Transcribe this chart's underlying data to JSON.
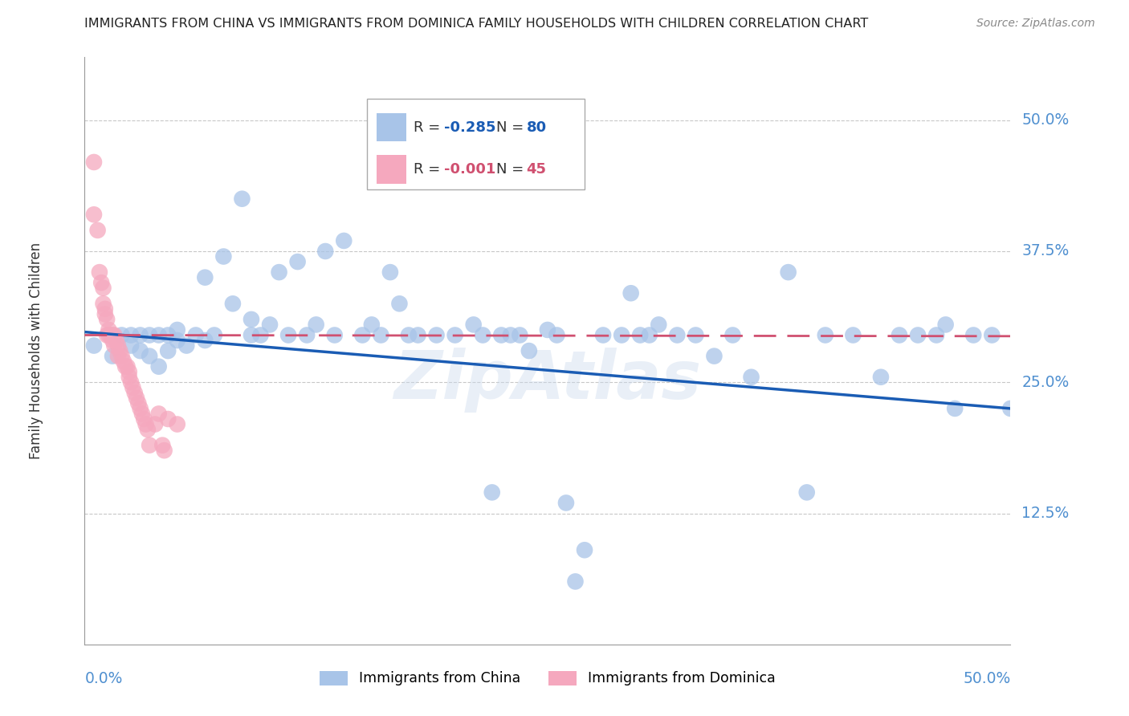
{
  "title": "IMMIGRANTS FROM CHINA VS IMMIGRANTS FROM DOMINICA FAMILY HOUSEHOLDS WITH CHILDREN CORRELATION CHART",
  "source": "Source: ZipAtlas.com",
  "ylabel": "Family Households with Children",
  "ytick_values": [
    0.5,
    0.375,
    0.25,
    0.125
  ],
  "ytick_labels": [
    "50.0%",
    "37.5%",
    "25.0%",
    "12.5%"
  ],
  "xlim": [
    0.0,
    0.5
  ],
  "ylim": [
    0.0,
    0.56
  ],
  "legend_china_R": "-0.285",
  "legend_china_N": "80",
  "legend_dominica_R": "-0.001",
  "legend_dominica_N": "45",
  "china_color": "#a8c4e8",
  "dominica_color": "#f5a8be",
  "china_line_color": "#1a5cb4",
  "dominica_line_color": "#d05070",
  "background_color": "#ffffff",
  "grid_color": "#c8c8c8",
  "watermark": "ZipAtlas",
  "title_color": "#222222",
  "axis_label_color": "#5090d0",
  "source_color": "#888888",
  "china_scatter_x": [
    0.005,
    0.015,
    0.02,
    0.025,
    0.025,
    0.03,
    0.03,
    0.035,
    0.035,
    0.04,
    0.04,
    0.045,
    0.045,
    0.05,
    0.05,
    0.055,
    0.06,
    0.065,
    0.065,
    0.07,
    0.075,
    0.08,
    0.085,
    0.09,
    0.09,
    0.095,
    0.1,
    0.105,
    0.11,
    0.115,
    0.12,
    0.125,
    0.13,
    0.135,
    0.14,
    0.15,
    0.155,
    0.16,
    0.165,
    0.17,
    0.175,
    0.18,
    0.19,
    0.2,
    0.21,
    0.215,
    0.22,
    0.225,
    0.23,
    0.235,
    0.24,
    0.25,
    0.255,
    0.26,
    0.265,
    0.27,
    0.28,
    0.29,
    0.295,
    0.3,
    0.305,
    0.31,
    0.32,
    0.33,
    0.34,
    0.35,
    0.36,
    0.38,
    0.39,
    0.4,
    0.415,
    0.43,
    0.44,
    0.45,
    0.46,
    0.465,
    0.47,
    0.48,
    0.49,
    0.5
  ],
  "china_scatter_y": [
    0.285,
    0.275,
    0.295,
    0.285,
    0.295,
    0.28,
    0.295,
    0.275,
    0.295,
    0.265,
    0.295,
    0.28,
    0.295,
    0.29,
    0.3,
    0.285,
    0.295,
    0.35,
    0.29,
    0.295,
    0.37,
    0.325,
    0.425,
    0.295,
    0.31,
    0.295,
    0.305,
    0.355,
    0.295,
    0.365,
    0.295,
    0.305,
    0.375,
    0.295,
    0.385,
    0.295,
    0.305,
    0.295,
    0.355,
    0.325,
    0.295,
    0.295,
    0.295,
    0.295,
    0.305,
    0.295,
    0.145,
    0.295,
    0.295,
    0.295,
    0.28,
    0.3,
    0.295,
    0.135,
    0.06,
    0.09,
    0.295,
    0.295,
    0.335,
    0.295,
    0.295,
    0.305,
    0.295,
    0.295,
    0.275,
    0.295,
    0.255,
    0.355,
    0.145,
    0.295,
    0.295,
    0.255,
    0.295,
    0.295,
    0.295,
    0.305,
    0.225,
    0.295,
    0.295,
    0.225
  ],
  "dominica_scatter_x": [
    0.005,
    0.005,
    0.007,
    0.008,
    0.009,
    0.01,
    0.01,
    0.011,
    0.011,
    0.012,
    0.012,
    0.013,
    0.013,
    0.014,
    0.015,
    0.015,
    0.016,
    0.016,
    0.017,
    0.018,
    0.018,
    0.019,
    0.02,
    0.021,
    0.022,
    0.023,
    0.024,
    0.024,
    0.025,
    0.026,
    0.027,
    0.028,
    0.029,
    0.03,
    0.031,
    0.032,
    0.033,
    0.034,
    0.035,
    0.038,
    0.04,
    0.042,
    0.043,
    0.045,
    0.05
  ],
  "dominica_scatter_y": [
    0.46,
    0.41,
    0.395,
    0.355,
    0.345,
    0.34,
    0.325,
    0.32,
    0.315,
    0.31,
    0.295,
    0.3,
    0.295,
    0.295,
    0.295,
    0.29,
    0.295,
    0.285,
    0.29,
    0.285,
    0.275,
    0.28,
    0.275,
    0.27,
    0.265,
    0.265,
    0.26,
    0.255,
    0.25,
    0.245,
    0.24,
    0.235,
    0.23,
    0.225,
    0.22,
    0.215,
    0.21,
    0.205,
    0.19,
    0.21,
    0.22,
    0.19,
    0.185,
    0.215,
    0.21
  ],
  "china_line_x": [
    0.0,
    0.5
  ],
  "china_line_y": [
    0.298,
    0.225
  ],
  "dominica_line_x": [
    0.0,
    0.5
  ],
  "dominica_line_y": [
    0.295,
    0.294
  ]
}
